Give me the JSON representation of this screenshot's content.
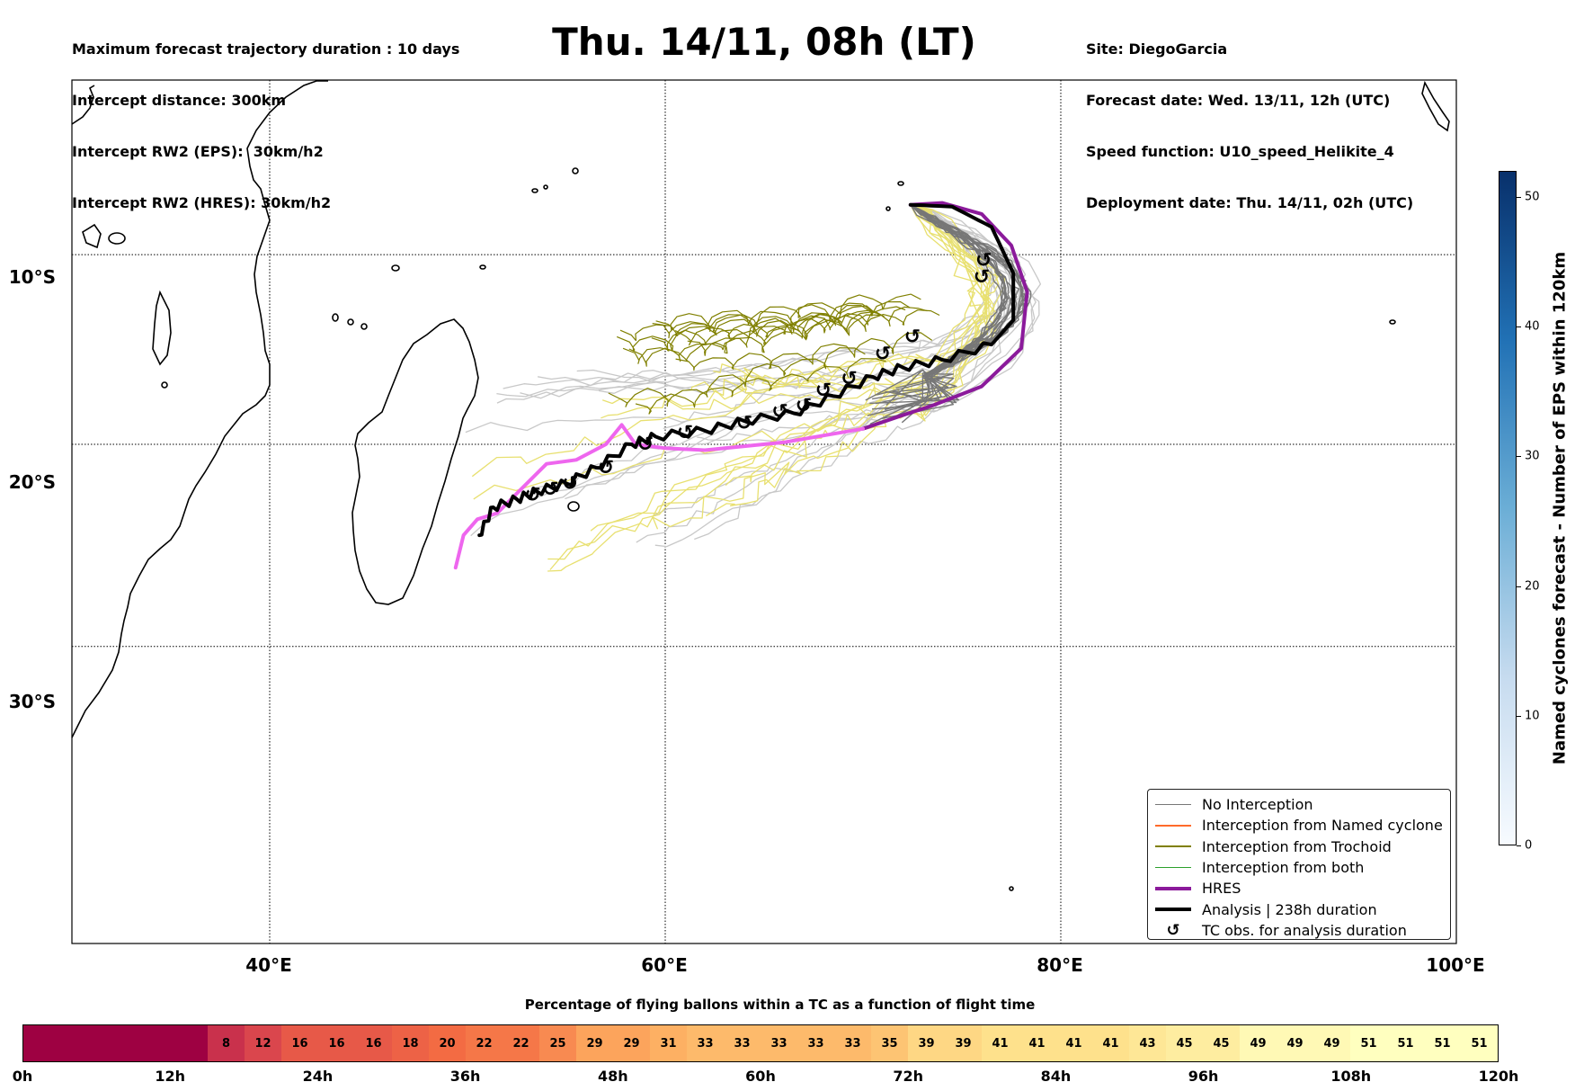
{
  "header": {
    "left_lines": [
      "Maximum forecast trajectory duration : 10 days",
      "Intercept distance: 300km",
      "Intercept RW2 (EPS):  30km/h2",
      "Intercept RW2 (HRES): 30km/h2"
    ],
    "title": "Thu. 14/11, 08h (LT)",
    "right_lines": [
      "Site: DiegoGarcia",
      "Forecast date: Wed. 13/11, 12h (UTC)",
      "Speed function: U10_speed_Helikite_4",
      "Deployment date: Thu. 14/11, 02h (UTC)"
    ]
  },
  "map": {
    "lat_labels": [
      "10°S",
      "20°S",
      "30°S"
    ],
    "lon_labels": [
      "40°E",
      "60°E",
      "80°E",
      "100°E"
    ],
    "lat_values": [
      -10,
      -20,
      -30
    ],
    "lon_values": [
      40,
      60,
      80,
      100
    ],
    "extent": {
      "lon_min": 30,
      "lon_max": 100,
      "lat_min": -43,
      "lat_max": -0.5
    },
    "deployment_site": {
      "lon": 72.4,
      "lat": -7.3
    },
    "colors": {
      "no_interception": "#777777",
      "no_interception_light": "#c8c8c8",
      "named_cyclone": "#ff6a2a",
      "trochoid": "#808000",
      "trochoid_light": "#e8e070",
      "both": "#2ca02c",
      "hres": "#8b1a9b",
      "hres_light": "#ee66ee",
      "analysis": "#000000"
    },
    "hres_track": [
      [
        72.4,
        -7.3
      ],
      [
        74,
        -7.2
      ],
      [
        76,
        -7.8
      ],
      [
        77.5,
        -9.5
      ],
      [
        78.3,
        -12
      ],
      [
        78,
        -15
      ],
      [
        76,
        -17
      ],
      [
        73.5,
        -18
      ],
      [
        72,
        -18.5
      ],
      [
        70,
        -19.2
      ],
      [
        66,
        -19.9
      ],
      [
        62,
        -20.3
      ],
      [
        60,
        -20.2
      ],
      [
        58.5,
        -20
      ],
      [
        57.8,
        -19
      ],
      [
        57,
        -20
      ],
      [
        55.5,
        -20.8
      ],
      [
        54,
        -21
      ],
      [
        52.5,
        -22.5
      ],
      [
        51.5,
        -23.5
      ],
      [
        50.5,
        -23.8
      ],
      [
        49.8,
        -24.6
      ],
      [
        49.4,
        -26.2
      ]
    ],
    "analysis_track": [
      [
        72.4,
        -7.3
      ],
      [
        74.5,
        -7.4
      ],
      [
        76.5,
        -8.5
      ],
      [
        77.6,
        -11
      ],
      [
        77.6,
        -13.5
      ],
      [
        76.5,
        -14.8
      ],
      [
        74,
        -15.6
      ],
      [
        72,
        -16
      ],
      [
        70.5,
        -16.5
      ],
      [
        68.5,
        -17.5
      ],
      [
        66.5,
        -18.4
      ],
      [
        64,
        -18.8
      ],
      [
        62,
        -19.3
      ],
      [
        59.5,
        -19.6
      ],
      [
        58.3,
        -20
      ],
      [
        56.5,
        -21.2
      ],
      [
        55,
        -22
      ],
      [
        53.5,
        -22.4
      ],
      [
        52.5,
        -22.8
      ],
      [
        51.3,
        -23.2
      ],
      [
        50.6,
        -24.6
      ]
    ],
    "tc_obs": [
      [
        72.5,
        -14.4
      ],
      [
        71,
        -15.3
      ],
      [
        69.3,
        -16.6
      ],
      [
        68,
        -17.2
      ],
      [
        67,
        -18
      ],
      [
        65.8,
        -18.3
      ],
      [
        64,
        -18.9
      ],
      [
        61,
        -19.4
      ],
      [
        59,
        -20
      ],
      [
        57,
        -21.2
      ],
      [
        55.2,
        -22
      ],
      [
        54.2,
        -22.3
      ],
      [
        53.3,
        -22.6
      ],
      [
        76.1,
        -10.3
      ],
      [
        76,
        -11.2
      ]
    ]
  },
  "legend": [
    {
      "label": "No Interception",
      "kind": "line",
      "color": "#777777",
      "width": 1.5
    },
    {
      "label": "Interception from Named cyclone",
      "kind": "line",
      "color": "#ff6a2a",
      "width": 1.5
    },
    {
      "label": "Interception from Trochoid",
      "kind": "line",
      "color": "#808000",
      "width": 1.5
    },
    {
      "label": "Interception from both",
      "kind": "line",
      "color": "#2ca02c",
      "width": 1.5
    },
    {
      "label": "HRES",
      "kind": "line",
      "color": "#8b1a9b",
      "width": 4
    },
    {
      "label": "Analysis | 238h duration",
      "kind": "line",
      "color": "#000000",
      "width": 4
    },
    {
      "label": "TC obs. for analysis duration",
      "kind": "glyph",
      "glyph": "↺",
      "color": "#000000"
    }
  ],
  "pct_bar": {
    "title": "Percentage of flying ballons within a TC as a function of flight time",
    "values": [
      "",
      "",
      "",
      "",
      "",
      "8",
      "12",
      "16",
      "16",
      "16",
      "18",
      "20",
      "22",
      "22",
      "25",
      "29",
      "29",
      "31",
      "33",
      "33",
      "33",
      "33",
      "33",
      "35",
      "39",
      "39",
      "41",
      "41",
      "41",
      "41",
      "43",
      "45",
      "45",
      "49",
      "49",
      "49",
      "51",
      "51",
      "51",
      "51"
    ],
    "time_labels": [
      "0h",
      "12h",
      "24h",
      "36h",
      "48h",
      "60h",
      "72h",
      "84h",
      "96h",
      "108h",
      "120h"
    ]
  },
  "side_colorbar": {
    "label": "Named cyclones forecast - Number of EPS within 120km",
    "ticks": [
      "0",
      "10",
      "20",
      "30",
      "40",
      "50"
    ],
    "max": 52
  }
}
